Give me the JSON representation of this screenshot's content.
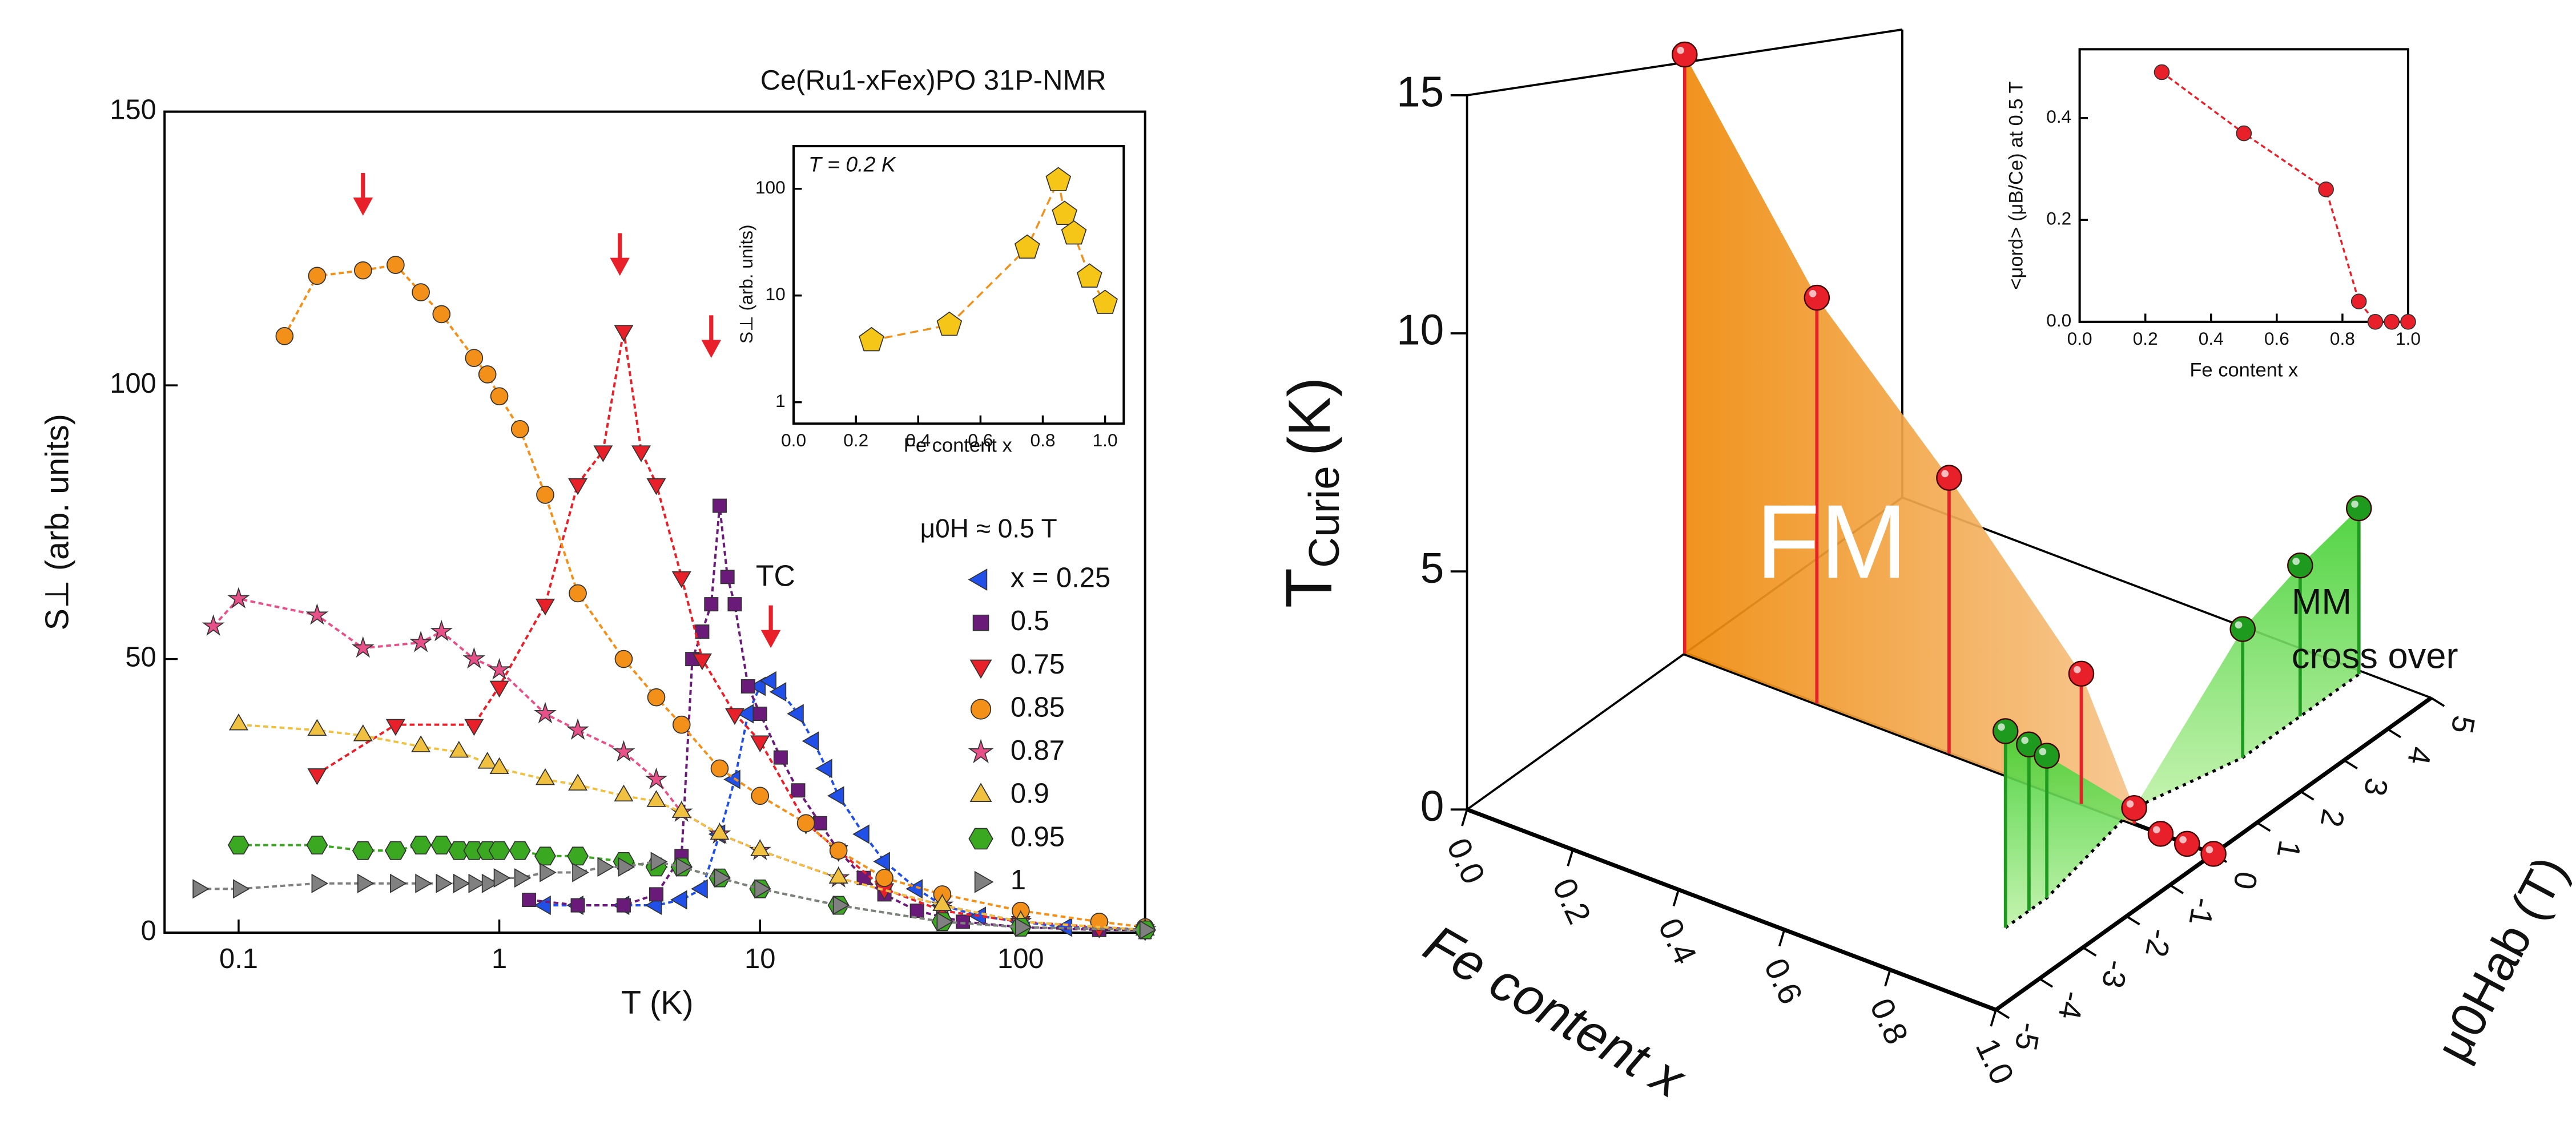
{
  "chart_data": [
    {
      "type": "scatter",
      "title": "Ce(Ru1-xFex)PO  31P-NMR",
      "xlabel": "T (K)",
      "ylabel": "S⊥ (arb. units)",
      "log_x": true,
      "xlim": [
        0.052,
        300
      ],
      "xticks": [
        0.1,
        1,
        10,
        100
      ],
      "ylim": [
        0,
        150
      ],
      "yticks": [
        0,
        50,
        100,
        150
      ],
      "legend_title": "μ0H ≈ 0.5 T",
      "annotations": [
        "TC"
      ],
      "arrows": [
        {
          "x": 0.3,
          "y": 131
        },
        {
          "x": 2.9,
          "y": 120
        },
        {
          "x": 6.5,
          "y": 105
        },
        {
          "x": 11,
          "y": 52
        }
      ],
      "arrow_color": "#e8202a",
      "series": [
        {
          "name": "x = 0.25",
          "color": "#2050e8",
          "marker": "triangle-left",
          "x": [
            1.5,
            2,
            3,
            4,
            5,
            6,
            7,
            8,
            9,
            10,
            11,
            12,
            14,
            16,
            18,
            20,
            25,
            30,
            40,
            50,
            70,
            100,
            150,
            200,
            300
          ],
          "values": [
            5,
            5,
            5,
            5,
            6,
            8,
            18,
            28,
            40,
            45,
            46,
            44,
            40,
            35,
            30,
            25,
            18,
            13,
            8,
            5,
            3,
            2,
            1,
            1,
            0.5
          ]
        },
        {
          "name": "0.5",
          "color": "#6a1b7a",
          "marker": "square",
          "x": [
            1.3,
            2,
            3,
            4,
            5,
            5.5,
            6,
            6.5,
            7,
            7.5,
            8,
            9,
            10,
            12,
            14,
            17,
            20,
            25,
            30,
            40,
            60,
            100,
            200,
            300
          ],
          "values": [
            6,
            5,
            5,
            7,
            14,
            50,
            55,
            60,
            78,
            65,
            60,
            45,
            40,
            32,
            26,
            20,
            15,
            10,
            7,
            4,
            2,
            1,
            0.5,
            0.5
          ]
        },
        {
          "name": "0.75",
          "color": "#e8202a",
          "marker": "triangle-down",
          "x": [
            0.2,
            0.4,
            0.8,
            1,
            1.5,
            2,
            2.5,
            3,
            3.5,
            4,
            5,
            6,
            8,
            10,
            15,
            20,
            30,
            50,
            100,
            200,
            300
          ],
          "values": [
            29,
            38,
            38,
            45,
            60,
            82,
            88,
            110,
            88,
            82,
            65,
            50,
            40,
            35,
            20,
            15,
            8,
            4,
            2,
            1,
            0.5
          ]
        },
        {
          "name": "0.85",
          "color": "#f39019",
          "marker": "circle",
          "x": [
            0.15,
            0.2,
            0.3,
            0.4,
            0.5,
            0.6,
            0.8,
            0.9,
            1,
            1.2,
            1.5,
            2,
            3,
            4,
            5,
            7,
            10,
            15,
            20,
            30,
            50,
            100,
            200,
            300
          ],
          "values": [
            109,
            120,
            121,
            122,
            117,
            113,
            105,
            102,
            98,
            92,
            80,
            62,
            50,
            43,
            38,
            30,
            25,
            20,
            15,
            10,
            7,
            4,
            2,
            1
          ]
        },
        {
          "name": "0.87",
          "color": "#e8508a",
          "marker": "star",
          "x": [
            0.08,
            0.1,
            0.2,
            0.3,
            0.5,
            0.6,
            0.8,
            1,
            1.5,
            2,
            3,
            4,
            5,
            7,
            10,
            20,
            50,
            100,
            300
          ],
          "values": [
            56,
            61,
            58,
            52,
            53,
            55,
            50,
            48,
            40,
            37,
            33,
            28,
            22,
            18,
            15,
            10,
            5,
            2,
            0.5
          ]
        },
        {
          "name": "0.9",
          "color": "#f0c040",
          "marker": "triangle-up",
          "x": [
            0.1,
            0.2,
            0.3,
            0.5,
            0.7,
            0.9,
            1,
            1.5,
            2,
            3,
            4,
            5,
            7,
            10,
            20,
            50,
            100,
            300
          ],
          "values": [
            38,
            37,
            36,
            34,
            33,
            31,
            30,
            28,
            27,
            25,
            24,
            22,
            18,
            15,
            10,
            5,
            2,
            0.5
          ]
        },
        {
          "name": "0.95",
          "color": "#3aa820",
          "marker": "hexagon",
          "x": [
            0.1,
            0.2,
            0.3,
            0.4,
            0.5,
            0.6,
            0.7,
            0.8,
            0.9,
            1,
            1.2,
            1.5,
            2,
            3,
            4,
            5,
            7,
            10,
            20,
            50,
            100,
            300
          ],
          "values": [
            16,
            16,
            15,
            15,
            16,
            16,
            15,
            15,
            15,
            15,
            15,
            14,
            14,
            13,
            12,
            12,
            10,
            8,
            5,
            2,
            1,
            0.5
          ]
        },
        {
          "name": "1",
          "color": "#808080",
          "marker": "triangle-right",
          "x": [
            0.07,
            0.1,
            0.2,
            0.3,
            0.4,
            0.5,
            0.6,
            0.7,
            0.8,
            0.9,
            1,
            1.2,
            1.5,
            2,
            2.5,
            3,
            4,
            5,
            7,
            10,
            20,
            50,
            100,
            300
          ],
          "values": [
            8,
            8,
            9,
            9,
            9,
            9,
            9,
            9,
            9,
            9,
            10,
            10,
            11,
            11,
            12,
            12,
            13,
            12,
            10,
            8,
            5,
            2,
            1,
            0.5
          ]
        }
      ]
    },
    {
      "type": "scatter",
      "xlabel": "Fe content x",
      "ylabel": "S⊥ (arb. units)",
      "annotations": [
        "T = 0.2 K"
      ],
      "log_y": true,
      "xlim": [
        0,
        1.06
      ],
      "ylim": [
        0.63,
        251
      ],
      "xticks": [
        {
          "value": 0,
          "label": "0.0"
        },
        {
          "value": 0.2,
          "label": "0.2"
        },
        {
          "value": 0.4,
          "label": "0.4"
        },
        {
          "value": 0.6,
          "label": "0.6"
        },
        {
          "value": 0.8,
          "label": "0.8"
        },
        {
          "value": 1,
          "label": "1.0"
        }
      ],
      "yticks": [
        1,
        10,
        100
      ],
      "series": [
        {
          "color": "#f5c518",
          "line_color": "#f39019",
          "marker": "pentagon",
          "x": [
            0.25,
            0.5,
            0.75,
            0.85,
            0.87,
            0.9,
            0.95,
            1.0
          ],
          "values": [
            3.8,
            5.3,
            28,
            120,
            58,
            38,
            15,
            8.5
          ]
        }
      ]
    },
    {
      "type": "scatter",
      "xlabel": "Fe content x",
      "ylabel": "<μord> (μB/Ce) at 0.5 T",
      "xlim": [
        0,
        1
      ],
      "ylim": [
        0,
        0.535
      ],
      "xticks": [
        {
          "value": 0,
          "label": "0.0"
        },
        {
          "value": 0.2,
          "label": "0.2"
        },
        {
          "value": 0.4,
          "label": "0.4"
        },
        {
          "value": 0.6,
          "label": "0.6"
        },
        {
          "value": 0.8,
          "label": "0.8"
        },
        {
          "value": 1,
          "label": "1.0"
        }
      ],
      "yticks": [
        {
          "value": 0,
          "label": "0.0"
        },
        {
          "value": 0.2,
          "label": "0.2"
        },
        {
          "value": 0.4,
          "label": "0.4"
        }
      ],
      "series": [
        {
          "color": "#e8202a",
          "marker": "circle",
          "x": [
            0.25,
            0.5,
            0.75,
            0.85,
            0.9,
            0.95,
            1.0
          ],
          "values": [
            0.49,
            0.37,
            0.26,
            0.04,
            0,
            0,
            0
          ]
        }
      ]
    },
    {
      "type": "surface3d",
      "tlabel": "T",
      "tlabel_sub": "Curie",
      "tlabel_unit": "(K)",
      "xlabel": "Fe content x",
      "hlabel": "μ0Hab (T)",
      "annotations": [
        "FM",
        "MM",
        "cross over"
      ],
      "xlim": [
        0,
        1
      ],
      "hlim": [
        -5,
        5
      ],
      "tlim": [
        0,
        15
      ],
      "xticks": [
        {
          "value": 0,
          "label": "0.0"
        },
        {
          "value": 0.2,
          "label": "0.2"
        },
        {
          "value": 0.4,
          "label": "0.4"
        },
        {
          "value": 0.6,
          "label": "0.6"
        },
        {
          "value": 0.8,
          "label": "0.8"
        },
        {
          "value": 1,
          "label": "1.0"
        }
      ],
      "hticks": [
        -5,
        -4,
        -3,
        -2,
        -1,
        0,
        1,
        2,
        3,
        4,
        5
      ],
      "tticks": [
        0,
        5,
        10,
        15
      ],
      "series": [
        {
          "color": "#e8202a",
          "fill": "#f28c10",
          "x": [
            0,
            0.25,
            0.5,
            0.75,
            0.85,
            0.9,
            0.95,
            1.0
          ],
          "H": [
            0,
            0,
            0,
            0,
            0,
            0,
            0,
            0
          ],
          "T": [
            15.2,
            10.3,
            7,
            3.3,
            0.4,
            0,
            0,
            0
          ]
        },
        {
          "color": "#1e9a1e",
          "fill": "#5ddc4a",
          "x": [
            0.87,
            0.87,
            0.87,
            0.87,
            0.87,
            0.87
          ],
          "H": [
            -3.2,
            -2.66,
            -2.25,
            2.25,
            3.57,
            4.92
          ],
          "T": [
            4.4,
            3.8,
            3.3,
            3.6,
            4.5,
            5.3
          ]
        }
      ]
    }
  ]
}
